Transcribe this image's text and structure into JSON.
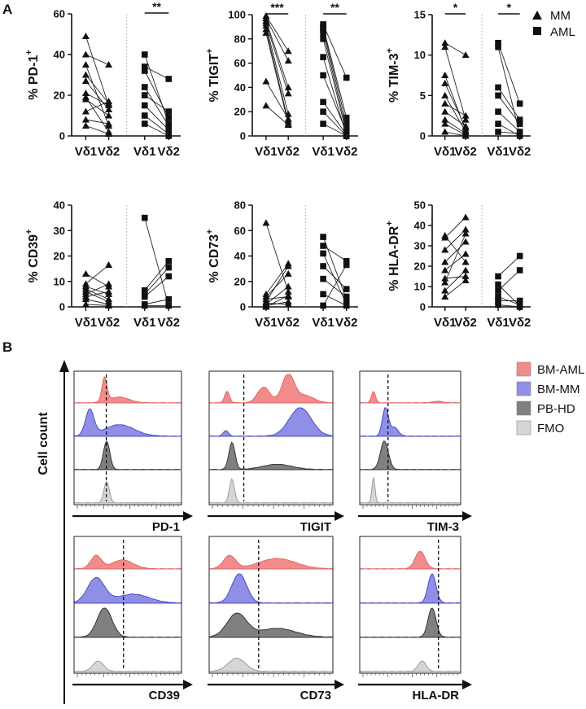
{
  "panel_labels": [
    "A",
    "B"
  ],
  "legend_a": {
    "mm": "MM",
    "aml": "AML"
  },
  "categories": [
    "Vδ1",
    "Vδ2",
    "Vδ1",
    "Vδ2"
  ],
  "chart_data": [
    {
      "type": "scatter",
      "id": "pd1",
      "ylabel": "% PD-1",
      "ylabel_sup": "+",
      "ylim": [
        0,
        60
      ],
      "yticks": [
        0,
        20,
        40,
        60
      ],
      "categories": [
        "Vδ1",
        "Vδ2",
        "Vδ1",
        "Vδ2"
      ],
      "significance": {
        "group": "AML",
        "label": "**"
      },
      "series": [
        {
          "name": "MM",
          "marker": "triangle",
          "pairs": [
            [
              49,
              15
            ],
            [
              40,
              35
            ],
            [
              35,
              5
            ],
            [
              30,
              16
            ],
            [
              27,
              13
            ],
            [
              21,
              15
            ],
            [
              19,
              2
            ],
            [
              18,
              10
            ],
            [
              12,
              17
            ],
            [
              8,
              6
            ],
            [
              5,
              1
            ]
          ]
        },
        {
          "name": "AML",
          "marker": "square",
          "pairs": [
            [
              40,
              6
            ],
            [
              34,
              28
            ],
            [
              32,
              9
            ],
            [
              24,
              5
            ],
            [
              20,
              12
            ],
            [
              15,
              3
            ],
            [
              10,
              1
            ],
            [
              6,
              0
            ]
          ]
        }
      ]
    },
    {
      "type": "scatter",
      "id": "tigit",
      "ylabel": "% TIGIT",
      "ylabel_sup": "+",
      "ylim": [
        0,
        100
      ],
      "yticks": [
        0,
        20,
        40,
        60,
        80,
        100
      ],
      "categories": [
        "Vδ1",
        "Vδ2",
        "Vδ1",
        "Vδ2"
      ],
      "significance_mm": "***",
      "significance_aml": "**",
      "series": [
        {
          "name": "MM",
          "marker": "triangle",
          "pairs": [
            [
              99,
              70
            ],
            [
              97,
              62
            ],
            [
              95,
              40
            ],
            [
              93,
              35
            ],
            [
              91,
              18
            ],
            [
              88,
              12
            ],
            [
              85,
              10
            ],
            [
              45,
              14
            ],
            [
              25,
              9
            ]
          ]
        },
        {
          "name": "AML",
          "marker": "square",
          "pairs": [
            [
              92,
              48
            ],
            [
              90,
              15
            ],
            [
              88,
              10
            ],
            [
              85,
              5
            ],
            [
              80,
              2
            ],
            [
              65,
              0
            ],
            [
              50,
              3
            ],
            [
              28,
              1
            ],
            [
              20,
              0
            ],
            [
              10,
              0
            ]
          ]
        }
      ]
    },
    {
      "type": "scatter",
      "id": "tim3",
      "ylabel": "% TIM-3",
      "ylabel_sup": "+",
      "ylim": [
        0,
        15
      ],
      "yticks": [
        0,
        5,
        10,
        15
      ],
      "categories": [
        "Vδ1",
        "Vδ2",
        "Vδ1",
        "Vδ2"
      ],
      "significance_mm": "*",
      "significance_aml": "*",
      "series": [
        {
          "name": "MM",
          "marker": "triangle",
          "pairs": [
            [
              11.5,
              10
            ],
            [
              11,
              2
            ],
            [
              7.5,
              0.7
            ],
            [
              6.5,
              1
            ],
            [
              5,
              0.5
            ],
            [
              4,
              2.5
            ],
            [
              3,
              1.2
            ],
            [
              2,
              0.3
            ],
            [
              1.5,
              0.1
            ],
            [
              0.5,
              0
            ]
          ]
        },
        {
          "name": "AML",
          "marker": "square",
          "pairs": [
            [
              11.5,
              4
            ],
            [
              11,
              0.2
            ],
            [
              6,
              2
            ],
            [
              5,
              1.5
            ],
            [
              3,
              0.5
            ],
            [
              1.5,
              0
            ],
            [
              0.5,
              0.3
            ]
          ]
        }
      ]
    },
    {
      "type": "scatter",
      "id": "cd39",
      "ylabel": "% CD39",
      "ylabel_sup": "+",
      "ylim": [
        0,
        40
      ],
      "yticks": [
        0,
        10,
        20,
        30,
        40
      ],
      "categories": [
        "Vδ1",
        "Vδ2",
        "Vδ1",
        "Vδ2"
      ],
      "series": [
        {
          "name": "MM",
          "marker": "triangle",
          "pairs": [
            [
              13,
              8
            ],
            [
              9,
              16.5
            ],
            [
              8,
              5
            ],
            [
              7,
              3
            ],
            [
              6,
              2
            ],
            [
              5,
              9
            ],
            [
              4,
              6
            ],
            [
              3,
              1
            ],
            [
              1,
              0.5
            ]
          ]
        },
        {
          "name": "AML",
          "marker": "square",
          "pairs": [
            [
              35,
              0.5
            ],
            [
              6.5,
              18
            ],
            [
              5,
              15.5
            ],
            [
              4,
              12
            ],
            [
              1,
              3
            ],
            [
              0.5,
              0.5
            ]
          ]
        }
      ]
    },
    {
      "type": "scatter",
      "id": "cd73",
      "ylabel": "% CD73",
      "ylabel_sup": "+",
      "ylim": [
        0,
        80
      ],
      "yticks": [
        0,
        20,
        40,
        60,
        80
      ],
      "categories": [
        "Vδ1",
        "Vδ2",
        "Vδ1",
        "Vδ2"
      ],
      "series": [
        {
          "name": "MM",
          "marker": "triangle",
          "pairs": [
            [
              66,
              12
            ],
            [
              10,
              34
            ],
            [
              8,
              26
            ],
            [
              6,
              8
            ],
            [
              4,
              32
            ],
            [
              3,
              2
            ],
            [
              2,
              16
            ],
            [
              1,
              4
            ],
            [
              0,
              9
            ]
          ]
        },
        {
          "name": "AML",
          "marker": "square",
          "pairs": [
            [
              55,
              6
            ],
            [
              48,
              36
            ],
            [
              42,
              2
            ],
            [
              32,
              14
            ],
            [
              22,
              8
            ],
            [
              10,
              1
            ],
            [
              1,
              33
            ]
          ]
        }
      ]
    },
    {
      "type": "scatter",
      "id": "hladr",
      "ylabel": "% HLA-DR",
      "ylabel_sup": "+",
      "ylim": [
        0,
        50
      ],
      "yticks": [
        0,
        10,
        20,
        30,
        40,
        50
      ],
      "categories": [
        "Vδ1",
        "Vδ2",
        "Vδ1",
        "Vδ2"
      ],
      "series": [
        {
          "name": "MM",
          "marker": "triangle",
          "pairs": [
            [
              35,
              22
            ],
            [
              34,
              44
            ],
            [
              28,
              38
            ],
            [
              22,
              32
            ],
            [
              18,
              26
            ],
            [
              14,
              15
            ],
            [
              12,
              36
            ],
            [
              8,
              18
            ],
            [
              5,
              13
            ]
          ]
        },
        {
          "name": "AML",
          "marker": "square",
          "pairs": [
            [
              15,
              25
            ],
            [
              11,
              0.5
            ],
            [
              8,
              18
            ],
            [
              5,
              1
            ],
            [
              3,
              3
            ],
            [
              1,
              0
            ]
          ]
        }
      ]
    }
  ],
  "histograms": {
    "y_axis_label": "Cell count",
    "legend": [
      {
        "name": "BM-AML",
        "color": "#f28b8b"
      },
      {
        "name": "BM-MM",
        "color": "#8f8fe6"
      },
      {
        "name": "PB-HD",
        "color": "#808080"
      },
      {
        "name": "FMO",
        "color": "#d6d6d6"
      }
    ],
    "edge_colors": [
      "#e46767",
      "#4b4bc9",
      "#333333",
      "#9a9a9a"
    ],
    "markers": [
      "PD-1",
      "TIGIT",
      "TIM-3",
      "CD39",
      "CD73",
      "HLA-DR"
    ],
    "gate": [
      0.3,
      0.28,
      0.28,
      0.46,
      0.4,
      0.78
    ],
    "peaks": [
      [
        [
          [
            0.28,
            0.024,
            0.85
          ],
          [
            0.42,
            0.09,
            0.2
          ]
        ],
        [
          [
            0.14,
            0.04,
            0.9
          ],
          [
            0.42,
            0.14,
            0.4
          ]
        ],
        [
          [
            0.3,
            0.03,
            1.0
          ]
        ],
        [
          [
            0.3,
            0.025,
            0.75
          ]
        ]
      ],
      [
        [
          [
            0.14,
            0.02,
            0.4
          ],
          [
            0.44,
            0.05,
            0.55
          ],
          [
            0.64,
            0.05,
            1.0
          ],
          [
            0.78,
            0.07,
            0.25
          ]
        ],
        [
          [
            0.13,
            0.02,
            0.2
          ],
          [
            0.74,
            0.09,
            1.0
          ]
        ],
        [
          [
            0.18,
            0.025,
            0.95
          ],
          [
            0.55,
            0.12,
            0.18
          ]
        ],
        [
          [
            0.18,
            0.02,
            0.85
          ]
        ]
      ],
      [
        [
          [
            0.13,
            0.02,
            0.4
          ],
          [
            0.78,
            0.05,
            0.05
          ]
        ],
        [
          [
            0.25,
            0.03,
            1.0
          ],
          [
            0.34,
            0.04,
            0.3
          ]
        ],
        [
          [
            0.24,
            0.04,
            1.0
          ]
        ],
        [
          [
            0.13,
            0.015,
            0.9
          ]
        ]
      ],
      [
        [
          [
            0.2,
            0.05,
            0.45
          ],
          [
            0.45,
            0.1,
            0.3
          ]
        ],
        [
          [
            0.2,
            0.08,
            0.85
          ],
          [
            0.55,
            0.15,
            0.3
          ]
        ],
        [
          [
            0.28,
            0.07,
            1.0
          ]
        ],
        [
          [
            0.22,
            0.05,
            0.35
          ]
        ]
      ],
      [
        [
          [
            0.16,
            0.05,
            0.45
          ],
          [
            0.55,
            0.15,
            0.35
          ]
        ],
        [
          [
            0.24,
            0.06,
            1.0
          ]
        ],
        [
          [
            0.22,
            0.08,
            0.8
          ],
          [
            0.55,
            0.15,
            0.3
          ]
        ],
        [
          [
            0.22,
            0.07,
            0.45
          ]
        ]
      ],
      [
        [
          [
            0.6,
            0.05,
            0.6
          ]
        ],
        [
          [
            0.72,
            0.04,
            1.0
          ]
        ],
        [
          [
            0.72,
            0.04,
            1.0
          ]
        ],
        [
          [
            0.62,
            0.04,
            0.35
          ]
        ]
      ]
    ]
  }
}
